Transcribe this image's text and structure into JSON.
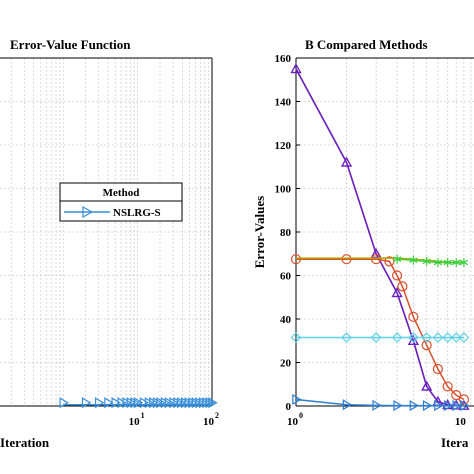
{
  "chart_data": [
    {
      "type": "line",
      "title": "Error-Value Function",
      "xlabel": "Iteration",
      "ylabel": "",
      "x_scale": "log",
      "xlim": [
        1,
        100
      ],
      "ylim": [
        0,
        160
      ],
      "x_ticks": [
        {
          "value": 10,
          "base": "10",
          "exp": "1"
        },
        {
          "value": 100,
          "base": "10",
          "exp": "2"
        }
      ],
      "grid": true,
      "legend": {
        "title": "Method",
        "position": "center-right",
        "entries": [
          "NSLRG-S"
        ]
      },
      "series": [
        {
          "name": "NSLRG-S",
          "color": "#3a8fd9",
          "marker": "triangle-right",
          "x": [
            1,
            2,
            3,
            4,
            5,
            6,
            7,
            8,
            9,
            10,
            12,
            14,
            16,
            18,
            20,
            23,
            26,
            30,
            34,
            38,
            43,
            48,
            54,
            60,
            67,
            75,
            83,
            92,
            100
          ],
          "y": [
            0.6,
            0.6,
            0.6,
            0.6,
            0.6,
            0.6,
            0.6,
            0.6,
            0.6,
            0.6,
            0.6,
            0.6,
            0.6,
            0.6,
            0.6,
            0.6,
            0.6,
            0.6,
            0.6,
            0.6,
            0.6,
            0.6,
            0.6,
            0.6,
            0.6,
            0.6,
            0.6,
            0.6,
            0.6
          ]
        }
      ]
    },
    {
      "type": "line",
      "title": "B  Compared Methods",
      "xlabel": "Itera",
      "ylabel": "Error-Values",
      "x_scale": "log",
      "xlim": [
        1,
        10
      ],
      "ylim": [
        0,
        160
      ],
      "x_ticks": [
        {
          "value": 1,
          "base": "10",
          "exp": "0"
        },
        {
          "value": 10,
          "base": "10",
          "exp": ""
        }
      ],
      "y_ticks": [
        0,
        20,
        40,
        60,
        80,
        100,
        120,
        140,
        160
      ],
      "grid": true,
      "series": [
        {
          "color": "#7f3fbf",
          "marker": "triangle-up",
          "x": [
            1,
            2,
            3,
            4,
            5,
            6,
            7,
            8,
            9,
            10
          ],
          "y": [
            155,
            112,
            70,
            52,
            30,
            9,
            2,
            0.5,
            0.3,
            0.2
          ]
        },
        {
          "color": "#6a1fbf",
          "marker": "triangle-up",
          "x": [
            1,
            2,
            3,
            4,
            5,
            6,
            7,
            8,
            9,
            10
          ],
          "y": [
            155,
            112,
            70,
            52,
            30,
            9,
            2,
            0.5,
            0.3,
            0.2
          ]
        },
        {
          "color": "#d94f2b",
          "marker": "circle",
          "x": [
            1,
            2,
            3,
            3.6,
            4,
            4.3,
            5,
            6,
            7,
            8,
            9,
            10
          ],
          "y": [
            67.5,
            67.5,
            67.5,
            66.5,
            60,
            55,
            41,
            28,
            17,
            9,
            5,
            3
          ]
        },
        {
          "color": "#b5a800",
          "marker": "none",
          "x": [
            1,
            2,
            3,
            4,
            5,
            6,
            7,
            8,
            9,
            10
          ],
          "y": [
            68,
            68,
            68,
            68,
            67.5,
            67,
            66.5,
            66,
            66,
            66
          ]
        },
        {
          "color": "#3fcf3f",
          "marker": "asterisk",
          "x": [
            4,
            5,
            6,
            7,
            8,
            9,
            10
          ],
          "y": [
            67.5,
            67,
            66.5,
            66,
            66,
            66,
            66
          ]
        },
        {
          "color": "#5fd0e8",
          "marker": "diamond",
          "x": [
            1,
            2,
            3,
            4,
            5,
            6,
            7,
            8,
            9,
            10
          ],
          "y": [
            31.5,
            31.5,
            31.5,
            31.5,
            31.5,
            31.5,
            31.5,
            31.5,
            31.5,
            31.5
          ]
        },
        {
          "color": "#2f7fd0",
          "marker": "triangle-right",
          "x": [
            1,
            2,
            3,
            4,
            5,
            6,
            7,
            8,
            9,
            10
          ],
          "y": [
            3,
            0.6,
            0.3,
            0.2,
            0.2,
            0.2,
            0.2,
            0.2,
            0.2,
            0.2
          ]
        }
      ]
    }
  ]
}
